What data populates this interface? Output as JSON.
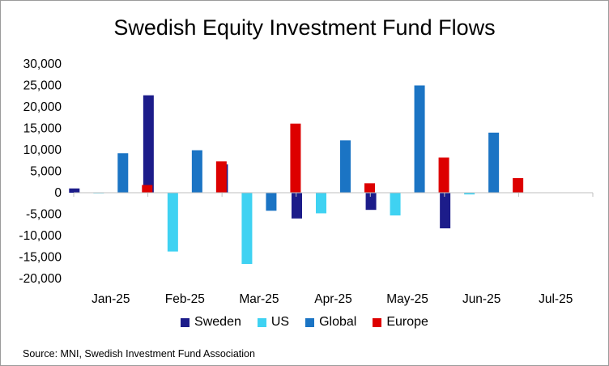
{
  "chart_data": {
    "type": "bar",
    "title": "Swedish Equity Investment Fund Flows",
    "categories": [
      "Jan-25",
      "Feb-25",
      "Mar-25",
      "Apr-25",
      "May-25",
      "Jun-25",
      "Jul-25"
    ],
    "series": [
      {
        "name": "Sweden",
        "color": "#1c1c8a",
        "values": [
          1000,
          22700,
          6600,
          -6000,
          -4000,
          -8300,
          null
        ]
      },
      {
        "name": "US",
        "color": "#3fd2f2",
        "values": [
          0,
          -13700,
          -16600,
          -4800,
          -5300,
          -400,
          null
        ]
      },
      {
        "name": "Global",
        "color": "#1b74c4",
        "values": [
          9200,
          9900,
          -4200,
          12200,
          25000,
          14000,
          null
        ]
      },
      {
        "name": "Europe",
        "color": "#dd0000",
        "values": [
          1800,
          7300,
          16100,
          2200,
          8200,
          3400,
          null
        ]
      }
    ],
    "ylim": [
      -20000,
      30000
    ],
    "yticks": [
      30000,
      25000,
      20000,
      15000,
      10000,
      5000,
      0,
      -5000,
      -10000,
      -15000,
      -20000
    ],
    "ytick_labels": [
      "30,000",
      "25,000",
      "20,000",
      "15,000",
      "10,000",
      "5,000",
      "0",
      "-5,000",
      "-10,000",
      "-15,000",
      "-20,000"
    ],
    "xlabel": "",
    "ylabel": "",
    "grid": false,
    "legend_position": "bottom"
  },
  "source": "Source: MNI,  Swedish Investment Fund Association"
}
